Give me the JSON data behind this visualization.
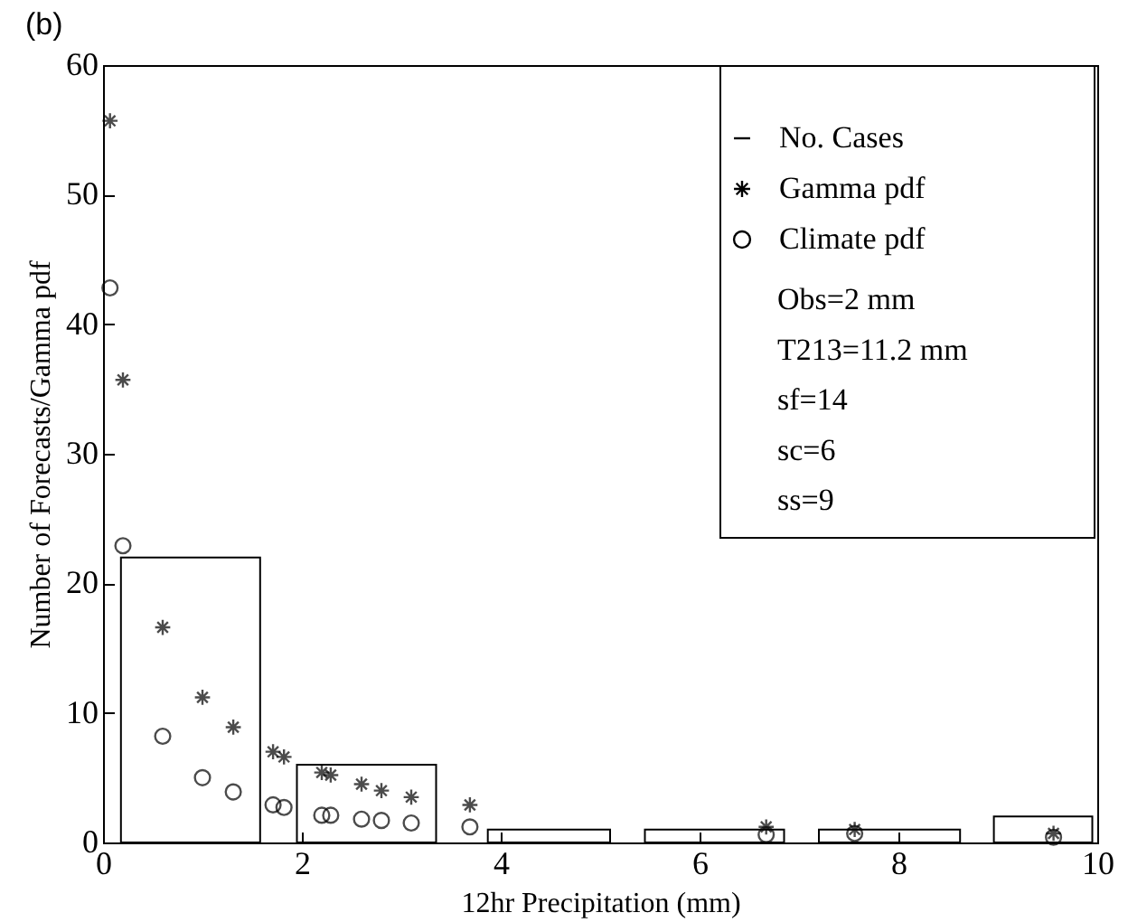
{
  "chart_data": {
    "type": "histogram",
    "title": "(b)",
    "xlabel": "12hr Precipitation (mm)",
    "ylabel": "Number of Forecasts/Gamma pdf",
    "bins": [
      0.18,
      1.58,
      1.95,
      3.35,
      3.87,
      5.1,
      5.45,
      6.85,
      7.2,
      8.62,
      8.96,
      9.95
    ],
    "series": [
      {
        "name": "No. Cases",
        "type": "histogram",
        "color": "#000000",
        "values": [
          22,
          null,
          6,
          null,
          1,
          null,
          1,
          null,
          1,
          null,
          2
        ]
      },
      {
        "name": "Gamma pdf",
        "type": "scatter",
        "color": "#000000",
        "marker": "cross",
        "x": [
          0.07,
          0.2,
          0.6,
          1.0,
          1.31,
          1.71,
          1.82,
          2.2,
          2.29,
          2.6,
          2.8,
          3.1,
          3.69,
          6.67,
          7.56,
          9.56
        ],
        "values": [
          55.7,
          35.7,
          16.6,
          11.2,
          8.9,
          7.0,
          6.6,
          5.4,
          5.2,
          4.5,
          4.0,
          3.5,
          2.9,
          1.2,
          1.0,
          0.7
        ]
      },
      {
        "name": "Climate pdf",
        "type": "scatter",
        "color": "#000000",
        "marker": "circle",
        "x": [
          0.07,
          0.2,
          0.6,
          1.0,
          1.31,
          1.71,
          1.82,
          2.2,
          2.29,
          2.6,
          2.8,
          3.1,
          3.69,
          6.67,
          7.56,
          9.56
        ],
        "values": [
          42.8,
          22.9,
          8.2,
          5.0,
          3.9,
          2.9,
          2.7,
          2.1,
          2.1,
          1.8,
          1.7,
          1.5,
          1.2,
          0.6,
          0.7,
          0.4
        ]
      }
    ],
    "annotations": [
      "Obs=2 mm",
      "T213=11.2 mm",
      "sf=14",
      "sc=6",
      "ss=9"
    ],
    "xlim": [
      0,
      10
    ],
    "xticks": [
      0,
      2,
      4,
      6,
      8,
      10
    ],
    "ylim": [
      0,
      60
    ],
    "yticks": [
      0,
      10,
      20,
      30,
      40,
      50,
      60
    ],
    "legend": "top right"
  }
}
